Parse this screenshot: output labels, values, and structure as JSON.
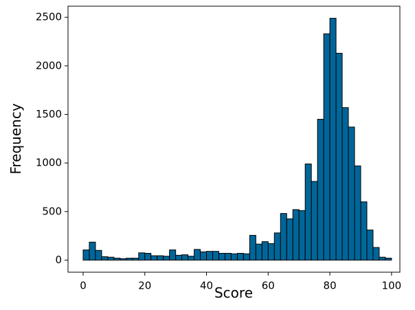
{
  "chart_data": {
    "type": "histogram",
    "xlabel": "Score",
    "ylabel": "Frequency",
    "color": "#006699",
    "edgecolor": "#000000",
    "bins": [
      0,
      2,
      4,
      6,
      8,
      10,
      12,
      14,
      16,
      18,
      20,
      22,
      24,
      26,
      28,
      30,
      32,
      34,
      36,
      38,
      40,
      42,
      44,
      46,
      48,
      50,
      52,
      54,
      56,
      58,
      60,
      62,
      64,
      66,
      68,
      70,
      72,
      74,
      76,
      78,
      80,
      82,
      84,
      86,
      88,
      90,
      92,
      94,
      96,
      98,
      100
    ],
    "values": [
      105,
      185,
      100,
      35,
      30,
      20,
      15,
      20,
      20,
      75,
      70,
      45,
      45,
      40,
      105,
      50,
      55,
      40,
      110,
      85,
      90,
      90,
      70,
      70,
      65,
      70,
      65,
      255,
      165,
      190,
      170,
      280,
      480,
      425,
      520,
      510,
      990,
      810,
      1450,
      2330,
      2490,
      2130,
      1570,
      1370,
      970,
      600,
      310,
      130,
      30,
      20
    ],
    "xlim": [
      -4.9,
      102.7
    ],
    "ylim": [
      -124.5,
      2614.5
    ],
    "xticks": [
      0,
      20,
      40,
      60,
      80,
      100
    ],
    "yticks": [
      0,
      500,
      1000,
      1500,
      2000,
      2500
    ]
  }
}
